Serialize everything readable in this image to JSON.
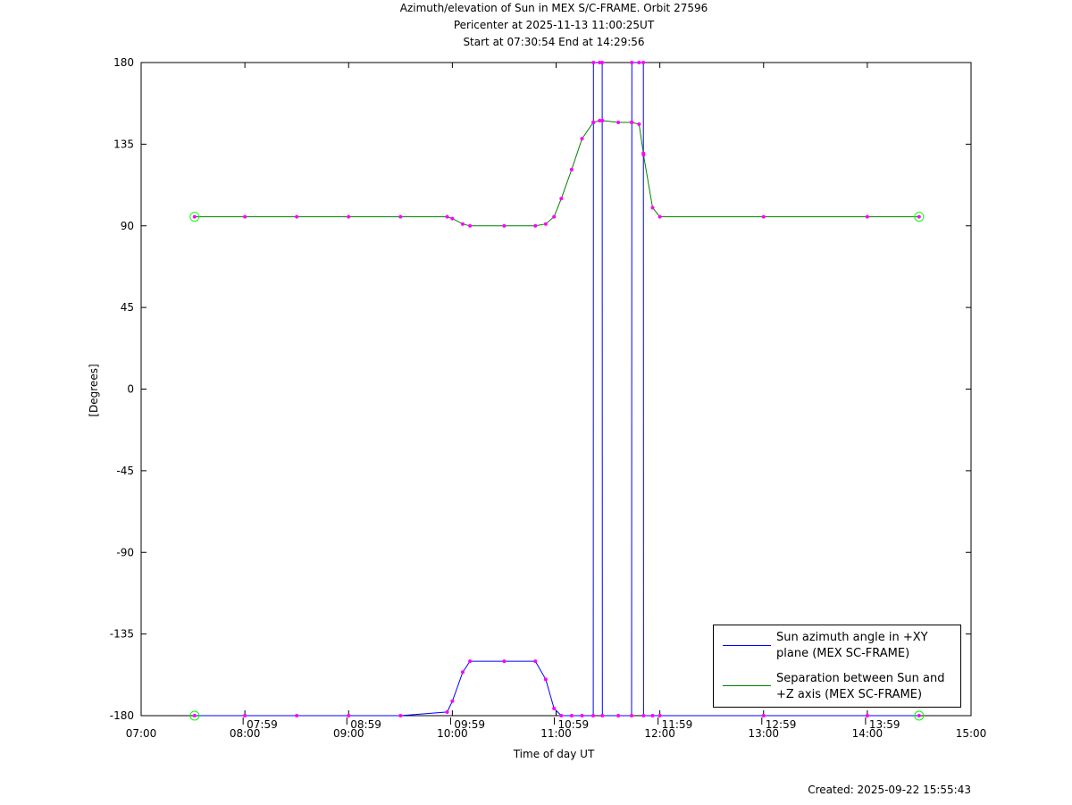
{
  "chart_data": {
    "type": "line",
    "title": "Azimuth/elevation of Sun in MEX S/C-FRAME.  Orbit 27596",
    "subtitle": [
      "Pericenter at 2025-11-13 11:00:25UT",
      "Start at 07:30:54 End at 14:29:56"
    ],
    "x_label": "Time of day UT",
    "y_label": "[Degrees]",
    "footer": "Created: 2025-09-22 15:55:43",
    "xlim": [
      7,
      15
    ],
    "xticks": [
      {
        "value": 7,
        "label": "07:00"
      },
      {
        "value": 8,
        "label": "08:00"
      },
      {
        "value": 9,
        "label": "09:00"
      },
      {
        "value": 10,
        "label": "10:00"
      },
      {
        "value": 11,
        "label": "11:00"
      },
      {
        "value": 12,
        "label": "12:00"
      },
      {
        "value": 13,
        "label": "13:00"
      },
      {
        "value": 14,
        "label": "14:00"
      },
      {
        "value": 15,
        "label": "15:00"
      }
    ],
    "ylim": [
      -180,
      180
    ],
    "yticks": [
      180,
      135,
      90,
      45,
      0,
      -45,
      -90,
      -135,
      -180
    ],
    "time_marks": [
      {
        "value": 7.983,
        "label": "07:59"
      },
      {
        "value": 8.983,
        "label": "08:59"
      },
      {
        "value": 9.983,
        "label": "09:59"
      },
      {
        "value": 10.983,
        "label": "10:59"
      },
      {
        "value": 11.983,
        "label": "11:59"
      },
      {
        "value": 12.983,
        "label": "12:59"
      },
      {
        "value": 13.983,
        "label": "13:59"
      }
    ],
    "x": [
      7.515,
      8.0,
      8.5,
      9.0,
      9.5,
      9.95,
      10.0,
      10.1,
      10.17,
      10.5,
      10.8,
      10.9,
      10.98,
      11.05,
      11.15,
      11.25,
      11.358,
      11.36,
      11.42,
      11.444,
      11.446,
      11.6,
      11.728,
      11.73,
      11.8,
      11.841,
      11.843,
      11.93,
      12.0,
      13.0,
      14.0,
      14.499
    ],
    "series": [
      {
        "name": "Sun azimuth angle in +XY plane (MEX SC-FRAME)",
        "color": "#0000ff",
        "values": [
          -180,
          -180,
          -180,
          -180,
          -180,
          -178,
          -172,
          -156,
          -150,
          -150,
          -150,
          -160,
          -176,
          -180,
          -180,
          -180,
          -180,
          180,
          180,
          180,
          -180,
          -180,
          -180,
          180,
          180,
          180,
          -180,
          -180,
          -180,
          -180,
          -180,
          -180
        ]
      },
      {
        "name": "Separation between Sun and +Z axis (MEX SC-FRAME)",
        "color": "#008000",
        "values": [
          95,
          95,
          95,
          95,
          95,
          95,
          94,
          91,
          90,
          90,
          90,
          91,
          95,
          105,
          121,
          138,
          147,
          147,
          148,
          148,
          148,
          147,
          147,
          147,
          146,
          130,
          129,
          100,
          95,
          95,
          95,
          95
        ]
      }
    ],
    "marker_color": "#ff00ff"
  }
}
